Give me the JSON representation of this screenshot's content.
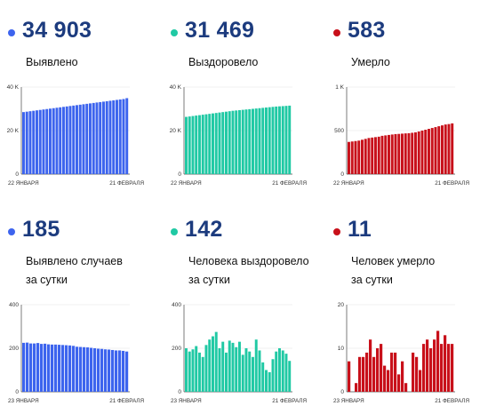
{
  "colors": {
    "blue": "#3d64ee",
    "teal": "#20c9a4",
    "red": "#c8101a",
    "number": "#1c3b7e"
  },
  "cards": [
    {
      "id": "cases-total",
      "value": "34 903",
      "label1": "Выявлено",
      "label2": "",
      "color": "blue",
      "chart_data": {
        "type": "bar",
        "x_start": "22 ЯНВАРЯ",
        "x_end": "21 ФЕВРАЛЯ",
        "yticks": [
          "40 K",
          "20 K",
          "0"
        ],
        "ylim": [
          0,
          40000
        ],
        "values": [
          28500,
          28700,
          28900,
          29100,
          29300,
          29500,
          29700,
          29900,
          30100,
          30300,
          30500,
          30700,
          30900,
          31100,
          31300,
          31500,
          31700,
          31900,
          32100,
          32300,
          32500,
          32700,
          32900,
          33100,
          33300,
          33500,
          33700,
          33900,
          34100,
          34300,
          34500,
          34903
        ]
      }
    },
    {
      "id": "recovered-total",
      "value": "31 469",
      "label1": "Выздоровело",
      "label2": "",
      "color": "teal",
      "chart_data": {
        "type": "bar",
        "x_start": "22 ЯНВАРЯ",
        "x_end": "21 ФЕВРАЛЯ",
        "yticks": [
          "40 K",
          "20 K",
          "0"
        ],
        "ylim": [
          0,
          40000
        ],
        "values": [
          26300,
          26500,
          26700,
          26900,
          27100,
          27300,
          27500,
          27700,
          27900,
          28100,
          28300,
          28500,
          28700,
          28900,
          29100,
          29250,
          29400,
          29550,
          29700,
          29850,
          30000,
          30150,
          30300,
          30450,
          30600,
          30750,
          30900,
          31050,
          31150,
          31250,
          31350,
          31469
        ]
      }
    },
    {
      "id": "deaths-total",
      "value": "583",
      "label1": "Умерло",
      "label2": "",
      "color": "red",
      "chart_data": {
        "type": "bar",
        "x_start": "22 ЯНВАРЯ",
        "x_end": "21 ФЕВРАЛЯ",
        "yticks": [
          "1 K",
          "500",
          "0"
        ],
        "ylim": [
          0,
          1000
        ],
        "values": [
          370,
          375,
          380,
          385,
          395,
          405,
          415,
          420,
          425,
          430,
          440,
          445,
          450,
          455,
          460,
          462,
          465,
          468,
          470,
          475,
          480,
          490,
          500,
          510,
          520,
          530,
          540,
          550,
          560,
          570,
          575,
          583
        ]
      }
    },
    {
      "id": "cases-daily",
      "value": "185",
      "label1": "Выявлено случаев",
      "label2": "за сутки",
      "color": "blue",
      "chart_data": {
        "type": "bar",
        "x_start": "23 ЯНВАРЯ",
        "x_end": "21 ФЕВРАЛЯ",
        "yticks": [
          "400",
          "200",
          "0"
        ],
        "ylim": [
          0,
          400
        ],
        "values": [
          225,
          226,
          222,
          222,
          224,
          220,
          221,
          218,
          217,
          217,
          216,
          215,
          214,
          213,
          211,
          207,
          206,
          205,
          204,
          202,
          200,
          198,
          197,
          195,
          194,
          192,
          190,
          190,
          188,
          185
        ]
      }
    },
    {
      "id": "recovered-daily",
      "value": "142",
      "label1": "Человека выздоровело",
      "label2": "за сутки",
      "color": "teal",
      "chart_data": {
        "type": "bar",
        "x_start": "23 ЯНВАРЯ",
        "x_end": "21 ФЕВРАЛЯ",
        "yticks": [
          "400",
          "200",
          "0"
        ],
        "ylim": [
          0,
          400
        ],
        "values": [
          200,
          185,
          195,
          210,
          180,
          160,
          215,
          240,
          255,
          275,
          200,
          230,
          180,
          235,
          225,
          205,
          230,
          170,
          200,
          185,
          160,
          240,
          190,
          135,
          100,
          90,
          150,
          185,
          200,
          190,
          175,
          142
        ]
      }
    },
    {
      "id": "deaths-daily",
      "value": "11",
      "label1": "Человек умерло",
      "label2": "за сутки",
      "color": "red",
      "chart_data": {
        "type": "bar",
        "x_start": "23 ЯНВАРЯ",
        "x_end": "21 ФЕВРАЛЯ",
        "yticks": [
          "20",
          "10",
          "0"
        ],
        "ylim": [
          0,
          20
        ],
        "values": [
          7,
          0,
          2,
          8,
          8,
          9,
          12,
          8,
          10,
          11,
          6,
          5,
          9,
          9,
          4,
          7,
          2,
          0,
          9,
          8,
          5,
          11,
          12,
          10,
          12,
          14,
          11,
          13,
          11,
          11
        ]
      }
    }
  ]
}
